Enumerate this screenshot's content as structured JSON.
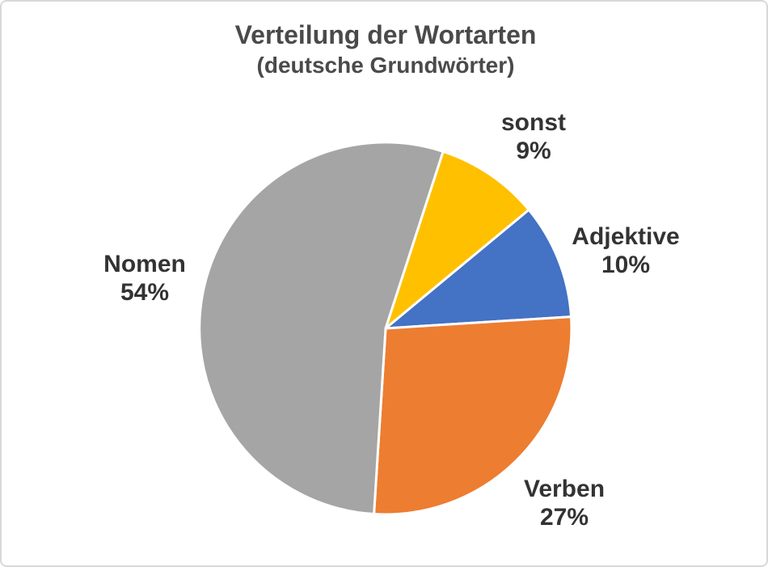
{
  "canvas": {
    "background": "#FFFFFF",
    "border_color": "#D8D8D8",
    "title_color": "#4A4A4A",
    "label_color": "#333333",
    "slice_separator_color": "#FFFFFF"
  },
  "chart_data": {
    "type": "pie",
    "title": "Verteilung der Wortarten",
    "subtitle": "(deutsche Grundwörter)",
    "unit": "percent",
    "start_angle_deg": 18,
    "direction": "clockwise",
    "legend": "none",
    "labels_position": "outside",
    "categories": [
      "sonst",
      "Adjektive",
      "Verben",
      "Nomen"
    ],
    "values": [
      9,
      10,
      27,
      54
    ],
    "slices": [
      {
        "label": "sonst",
        "value": 9,
        "pct_label": "9%",
        "color": "#FFC000"
      },
      {
        "label": "Adjektive",
        "value": 10,
        "pct_label": "10%",
        "color": "#4472C4"
      },
      {
        "label": "Verben",
        "value": 27,
        "pct_label": "27%",
        "color": "#ED7D31"
      },
      {
        "label": "Nomen",
        "value": 54,
        "pct_label": "54%",
        "color": "#A5A5A5"
      }
    ]
  }
}
